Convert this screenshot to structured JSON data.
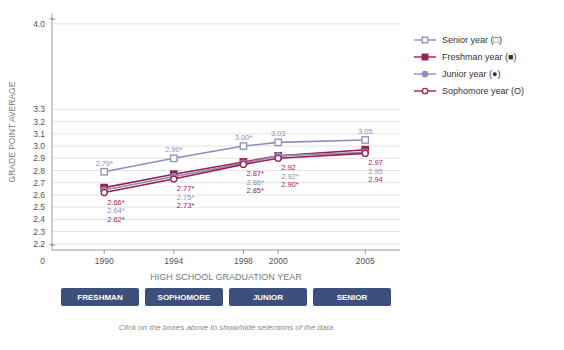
{
  "chart_data": {
    "type": "line",
    "xlabel": "HIGH SCHOOL GRADUATION YEAR",
    "ylabel": "GRADE POINT AVERAGE",
    "x": [
      1990,
      1994,
      1998,
      2000,
      2005
    ],
    "xlim": [
      1987,
      2007
    ],
    "xticks": [
      1990,
      1994,
      1998,
      2000,
      2005
    ],
    "ylim": [
      2.15,
      4.08
    ],
    "yticks": [
      2.2,
      2.3,
      2.4,
      2.5,
      2.6,
      2.7,
      2.8,
      2.9,
      {
        "value": 3.0,
        "label": "3.0"
      },
      3.1,
      3.2,
      3.3,
      {
        "value": 4.0,
        "label": "4.0"
      }
    ],
    "grid": true,
    "legend": "right",
    "data_labels": true,
    "series": [
      {
        "name": "Senior year (□)",
        "color": "#8a90bb",
        "marker": "square-open",
        "values": [
          2.79,
          2.9,
          3.0,
          3.03,
          3.05
        ],
        "value_labels": [
          "2.79*",
          "2.90*",
          "3.00*",
          "3.03",
          "3.05"
        ]
      },
      {
        "name": "Freshman year (■)",
        "color": "#9b1f52",
        "marker": "square",
        "values": [
          2.66,
          2.77,
          2.87,
          2.92,
          2.97
        ],
        "value_labels": [
          "2.66*",
          "2.77*",
          "2.87*",
          "2.92",
          "2.97"
        ]
      },
      {
        "name": "Junior year (●)",
        "color": "#8a90bb",
        "marker": "circle",
        "values": [
          2.64,
          2.75,
          2.86,
          2.92,
          2.95
        ],
        "value_labels": [
          "2.64*",
          "2.75*",
          "2.86*",
          "2.92*",
          "2.95"
        ]
      },
      {
        "name": "Sophomore year (O)",
        "color": "#9b1f52",
        "marker": "circle-open",
        "values": [
          2.62,
          2.73,
          2.85,
          2.9,
          2.94
        ],
        "value_labels": [
          "2.62*",
          "2.73*",
          "2.85*",
          "2.90*",
          "2.94"
        ]
      }
    ],
    "annotations": [
      {
        "text": "~"
      },
      {
        "text": "~"
      },
      {
        "text": "0"
      }
    ],
    "buttons": [
      "FRESHMAN",
      "SOPHOMORE",
      "JUNIOR",
      "SENIOR"
    ],
    "footer": "Click on the boxes above to show/hide selections of the data"
  }
}
